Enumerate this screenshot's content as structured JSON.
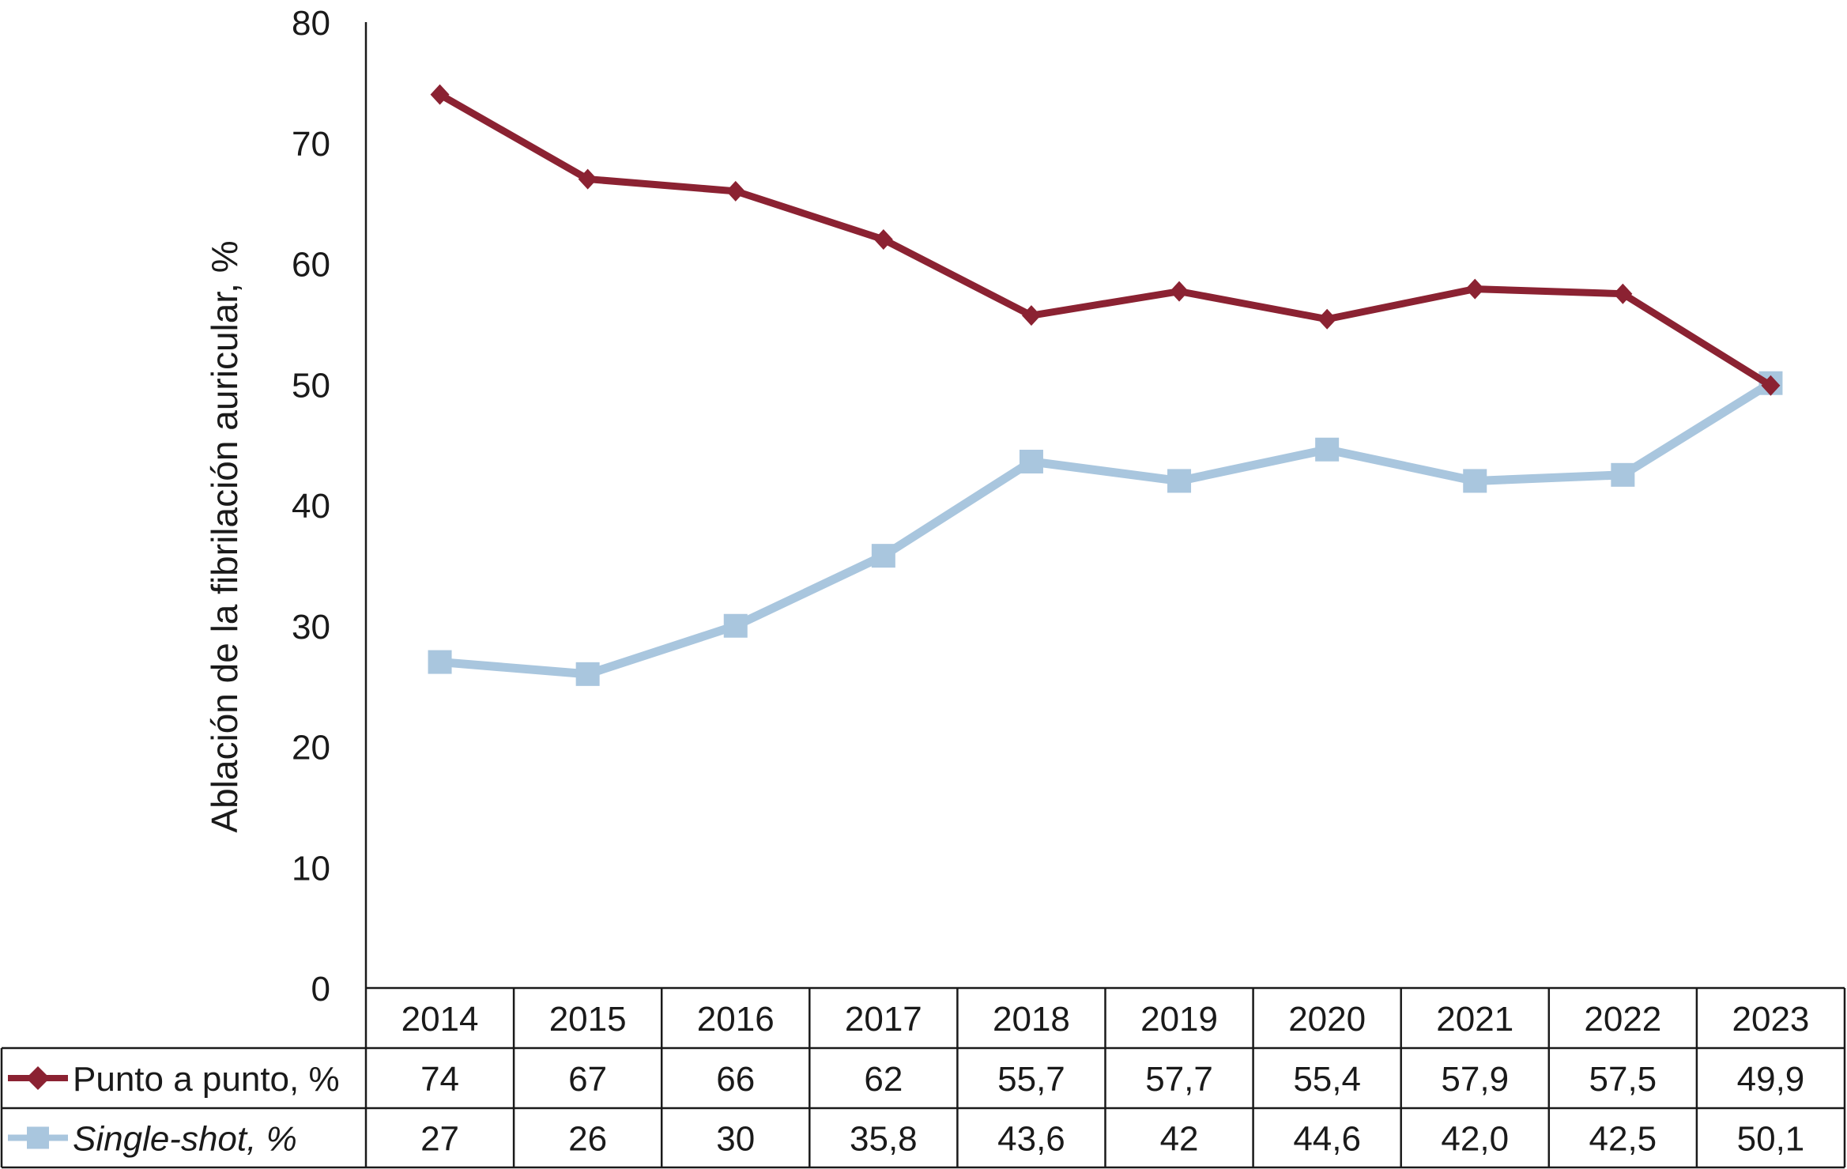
{
  "chart_data": {
    "type": "line",
    "ylabel": "Ablación de la fibrilación auricular, %",
    "ylim": [
      0,
      80
    ],
    "yticks": [
      "0",
      "10",
      "20",
      "30",
      "40",
      "50",
      "60",
      "70",
      "80"
    ],
    "categories": [
      "2014",
      "2015",
      "2016",
      "2017",
      "2018",
      "2019",
      "2020",
      "2021",
      "2022",
      "2023"
    ],
    "grid": false,
    "legend_placement": "data table below plot",
    "series": [
      {
        "name": "Punto a punto, %",
        "italic": false,
        "color": "#8B2232",
        "marker": "diamond",
        "values": [
          74,
          67,
          66,
          62,
          55.7,
          57.7,
          55.4,
          57.9,
          57.5,
          49.9
        ],
        "labels": [
          "74",
          "67",
          "66",
          "62",
          "55,7",
          "57,7",
          "55,4",
          "57,9",
          "57,5",
          "49,9"
        ]
      },
      {
        "name": "Single-shot, %",
        "italic": true,
        "color": "#A9C6DE",
        "marker": "square",
        "values": [
          27,
          26,
          30,
          35.8,
          43.6,
          42,
          44.6,
          42.0,
          42.5,
          50.1
        ],
        "labels": [
          "27",
          "26",
          "30",
          "35,8",
          "43,6",
          "42",
          "44,6",
          "42,0",
          "42,5",
          "50,1"
        ]
      }
    ]
  }
}
